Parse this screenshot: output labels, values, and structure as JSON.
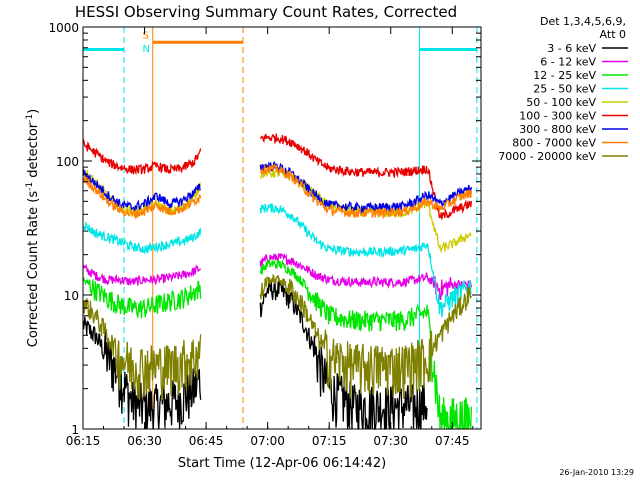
{
  "chart_data": {
    "type": "line",
    "title": "HESSI Observing Summary Count Rates, Corrected",
    "xlabel": "Start Time (12-Apr-06 06:14:42)",
    "ylabel": "Corrected Count Rate (s",
    "ylabel_sup1": "-1",
    "ylabel_mid": " detector",
    "ylabel_sup2": "-1",
    "ylabel_end": ")",
    "y_scale": "log",
    "ylim": [
      1,
      1000
    ],
    "xlim": [
      "06:15",
      "07:52"
    ],
    "x_ticks": [
      "06:15",
      "06:30",
      "06:45",
      "07:00",
      "07:15",
      "07:30",
      "07:45"
    ],
    "y_ticks": [
      {
        "value": 1,
        "label": "1"
      },
      {
        "value": 10,
        "label": "10"
      },
      {
        "value": 100,
        "label": "100"
      },
      {
        "value": 1000,
        "label": "1000"
      }
    ],
    "legend_position": "right",
    "legend_header": [
      "Det 1,3,4,5,6,9,",
      "Att 0"
    ],
    "footer_timestamp": "26-Jan-2010 13:29",
    "grid": false,
    "segments": [
      {
        "start": "06:15",
        "end": "06:44"
      },
      {
        "start": "06:57",
        "end": "07:50"
      }
    ],
    "series": [
      {
        "name": "3 - 6 keV",
        "color": "#000000",
        "values": [
          [
            6.25,
            6
          ],
          [
            6.3,
            5
          ],
          [
            6.35,
            3.5
          ],
          [
            6.4,
            2.5
          ],
          [
            6.45,
            1.6
          ],
          [
            6.5,
            1.5
          ],
          [
            6.55,
            1.5
          ],
          [
            6.6,
            1.6
          ],
          [
            6.65,
            1.7
          ],
          [
            6.7,
            2
          ],
          [
            6.73,
            2.5
          ],
          [
            6.97,
            8
          ],
          [
            7.0,
            11
          ],
          [
            7.05,
            11
          ],
          [
            7.1,
            9
          ],
          [
            7.15,
            6
          ],
          [
            7.2,
            3.5
          ],
          [
            7.25,
            2
          ],
          [
            7.35,
            1.5
          ],
          [
            7.45,
            1.5
          ],
          [
            7.6,
            1.5
          ],
          [
            7.65,
            1.6
          ]
        ]
      },
      {
        "name": "6 - 12 keV",
        "color": "#e600e6",
        "values": [
          [
            6.25,
            16
          ],
          [
            6.3,
            14
          ],
          [
            6.35,
            13
          ],
          [
            6.4,
            13
          ],
          [
            6.45,
            12.5
          ],
          [
            6.5,
            13
          ],
          [
            6.55,
            13
          ],
          [
            6.6,
            13.5
          ],
          [
            6.65,
            14
          ],
          [
            6.7,
            15
          ],
          [
            6.73,
            16
          ],
          [
            6.97,
            17
          ],
          [
            7.0,
            19
          ],
          [
            7.05,
            19
          ],
          [
            7.1,
            18
          ],
          [
            7.15,
            16
          ],
          [
            7.2,
            14
          ],
          [
            7.25,
            13
          ],
          [
            7.35,
            12.5
          ],
          [
            7.45,
            12.5
          ],
          [
            7.55,
            12.5
          ],
          [
            7.6,
            13
          ],
          [
            7.65,
            13.5
          ],
          [
            7.7,
            11
          ],
          [
            7.75,
            12
          ],
          [
            7.8,
            12
          ],
          [
            7.83,
            12
          ]
        ]
      },
      {
        "name": "12 - 25 keV",
        "color": "#00e600",
        "values": [
          [
            6.25,
            13
          ],
          [
            6.3,
            11
          ],
          [
            6.35,
            9.5
          ],
          [
            6.4,
            8.5
          ],
          [
            6.45,
            8
          ],
          [
            6.5,
            8
          ],
          [
            6.55,
            8.5
          ],
          [
            6.6,
            9
          ],
          [
            6.65,
            9.5
          ],
          [
            6.7,
            10.5
          ],
          [
            6.73,
            11.5
          ],
          [
            6.97,
            15
          ],
          [
            7.0,
            17
          ],
          [
            7.05,
            17
          ],
          [
            7.1,
            15
          ],
          [
            7.15,
            12
          ],
          [
            7.2,
            9
          ],
          [
            7.25,
            7
          ],
          [
            7.35,
            6.5
          ],
          [
            7.45,
            6.5
          ],
          [
            7.55,
            6.5
          ],
          [
            7.6,
            7
          ],
          [
            7.65,
            7.5
          ],
          [
            7.7,
            1.2
          ],
          [
            7.83,
            1.2
          ]
        ]
      },
      {
        "name": "25 - 50 keV",
        "color": "#00e6e6",
        "values": [
          [
            6.25,
            34
          ],
          [
            6.3,
            29
          ],
          [
            6.35,
            27
          ],
          [
            6.4,
            25
          ],
          [
            6.45,
            23
          ],
          [
            6.5,
            22
          ],
          [
            6.55,
            23
          ],
          [
            6.6,
            24
          ],
          [
            6.65,
            25
          ],
          [
            6.7,
            27
          ],
          [
            6.73,
            30
          ],
          [
            6.97,
            44
          ],
          [
            7.0,
            45
          ],
          [
            7.05,
            44
          ],
          [
            7.1,
            39
          ],
          [
            7.15,
            31
          ],
          [
            7.2,
            25
          ],
          [
            7.25,
            22
          ],
          [
            7.35,
            21
          ],
          [
            7.45,
            21
          ],
          [
            7.55,
            21.5
          ],
          [
            7.6,
            22
          ],
          [
            7.65,
            24
          ],
          [
            7.7,
            8
          ],
          [
            7.75,
            9.5
          ],
          [
            7.8,
            11
          ],
          [
            7.83,
            12
          ]
        ]
      },
      {
        "name": "50 - 100 keV",
        "color": "#cccc00",
        "values": [
          [
            6.25,
            85
          ],
          [
            6.3,
            70
          ],
          [
            6.35,
            55
          ],
          [
            6.4,
            45
          ],
          [
            6.45,
            42
          ],
          [
            6.5,
            44
          ],
          [
            6.55,
            48
          ],
          [
            6.6,
            42
          ],
          [
            6.65,
            44
          ],
          [
            6.7,
            52
          ],
          [
            6.73,
            70
          ],
          [
            6.97,
            80
          ],
          [
            7.0,
            82
          ],
          [
            7.05,
            81
          ],
          [
            7.1,
            76
          ],
          [
            7.15,
            66
          ],
          [
            7.2,
            55
          ],
          [
            7.25,
            47
          ],
          [
            7.35,
            42
          ],
          [
            7.45,
            41
          ],
          [
            7.55,
            41
          ],
          [
            7.6,
            44
          ],
          [
            7.65,
            49
          ],
          [
            7.7,
            22
          ],
          [
            7.75,
            24
          ],
          [
            7.8,
            27
          ],
          [
            7.83,
            29
          ]
        ]
      },
      {
        "name": "100 - 300 keV",
        "color": "#e60000",
        "values": [
          [
            6.25,
            135
          ],
          [
            6.3,
            115
          ],
          [
            6.35,
            98
          ],
          [
            6.4,
            90
          ],
          [
            6.45,
            86
          ],
          [
            6.5,
            87
          ],
          [
            6.55,
            92
          ],
          [
            6.6,
            86
          ],
          [
            6.65,
            88
          ],
          [
            6.7,
            98
          ],
          [
            6.73,
            118
          ],
          [
            6.97,
            148
          ],
          [
            7.0,
            150
          ],
          [
            7.05,
            148
          ],
          [
            7.1,
            138
          ],
          [
            7.15,
            120
          ],
          [
            7.2,
            100
          ],
          [
            7.25,
            88
          ],
          [
            7.35,
            83
          ],
          [
            7.45,
            82
          ],
          [
            7.55,
            83
          ],
          [
            7.6,
            85
          ],
          [
            7.65,
            88
          ],
          [
            7.7,
            38
          ],
          [
            7.75,
            42
          ],
          [
            7.8,
            46
          ],
          [
            7.83,
            48
          ]
        ]
      },
      {
        "name": "300 - 800 keV",
        "color": "#0000e6",
        "values": [
          [
            6.25,
            82
          ],
          [
            6.3,
            68
          ],
          [
            6.35,
            56
          ],
          [
            6.4,
            48
          ],
          [
            6.45,
            45
          ],
          [
            6.5,
            48
          ],
          [
            6.55,
            55
          ],
          [
            6.6,
            48
          ],
          [
            6.65,
            50
          ],
          [
            6.7,
            58
          ],
          [
            6.73,
            65
          ],
          [
            6.97,
            90
          ],
          [
            7.0,
            92
          ],
          [
            7.05,
            90
          ],
          [
            7.1,
            80
          ],
          [
            7.15,
            66
          ],
          [
            7.2,
            54
          ],
          [
            7.25,
            47
          ],
          [
            7.35,
            45
          ],
          [
            7.45,
            45
          ],
          [
            7.55,
            46
          ],
          [
            7.6,
            50
          ],
          [
            7.65,
            56
          ],
          [
            7.7,
            48
          ],
          [
            7.75,
            54
          ],
          [
            7.8,
            60
          ],
          [
            7.83,
            63
          ]
        ]
      },
      {
        "name": "800 - 7000 keV",
        "color": "#ff8000",
        "values": [
          [
            6.25,
            75
          ],
          [
            6.3,
            62
          ],
          [
            6.35,
            50
          ],
          [
            6.4,
            43
          ],
          [
            6.45,
            40
          ],
          [
            6.5,
            42
          ],
          [
            6.55,
            47
          ],
          [
            6.6,
            42
          ],
          [
            6.65,
            44
          ],
          [
            6.7,
            50
          ],
          [
            6.73,
            55
          ],
          [
            6.97,
            86
          ],
          [
            7.0,
            88
          ],
          [
            7.05,
            86
          ],
          [
            7.1,
            76
          ],
          [
            7.15,
            62
          ],
          [
            7.2,
            50
          ],
          [
            7.25,
            43
          ],
          [
            7.35,
            41
          ],
          [
            7.45,
            41
          ],
          [
            7.55,
            42
          ],
          [
            7.6,
            45
          ],
          [
            7.65,
            50
          ],
          [
            7.7,
            44
          ],
          [
            7.75,
            50
          ],
          [
            7.8,
            56
          ],
          [
            7.83,
            58
          ]
        ]
      },
      {
        "name": "7000 - 20000 keV",
        "color": "#808000",
        "values": [
          [
            6.25,
            9
          ],
          [
            6.3,
            7
          ],
          [
            6.35,
            5
          ],
          [
            6.4,
            3.5
          ],
          [
            6.45,
            3
          ],
          [
            6.5,
            3
          ],
          [
            6.55,
            3
          ],
          [
            6.6,
            3
          ],
          [
            6.65,
            3.2
          ],
          [
            6.7,
            3.5
          ],
          [
            6.73,
            4
          ],
          [
            6.97,
            10
          ],
          [
            7.0,
            13
          ],
          [
            7.05,
            13
          ],
          [
            7.1,
            11
          ],
          [
            7.15,
            8
          ],
          [
            7.2,
            5
          ],
          [
            7.25,
            3.5
          ],
          [
            7.35,
            3
          ],
          [
            7.45,
            3
          ],
          [
            7.55,
            3
          ],
          [
            7.6,
            3.2
          ],
          [
            7.65,
            3.5
          ],
          [
            7.7,
            5
          ],
          [
            7.75,
            7
          ],
          [
            7.8,
            9
          ],
          [
            7.83,
            11
          ]
        ]
      }
    ],
    "flag_lines": [
      {
        "time": "06:15",
        "color": "#00e6e6",
        "style": "solid"
      },
      {
        "time": "06:25",
        "color": "#00e6e6",
        "style": "dashed"
      },
      {
        "time": "06:32",
        "color": "#ff8000",
        "style": "solid"
      },
      {
        "time": "06:54",
        "color": "#ff8000",
        "style": "dashed"
      },
      {
        "time": "07:37",
        "color": "#00e6e6",
        "style": "solid"
      },
      {
        "time": "07:51",
        "color": "#00e6e6",
        "style": "dashed"
      }
    ],
    "flag_bars": [
      {
        "start": "06:15",
        "end": "06:25",
        "value": 680,
        "color": "#00e6e6"
      },
      {
        "start": "06:32",
        "end": "06:54",
        "value": 770,
        "color": "#ff8000"
      },
      {
        "start": "07:37",
        "end": "07:51",
        "value": 680,
        "color": "#00e6e6"
      }
    ],
    "annotations": [
      {
        "text": "S",
        "time": "06:30",
        "value": 880,
        "color": "#ff8000"
      },
      {
        "text": "N",
        "time": "06:30",
        "value": 700,
        "color": "#00e6e6"
      }
    ]
  }
}
